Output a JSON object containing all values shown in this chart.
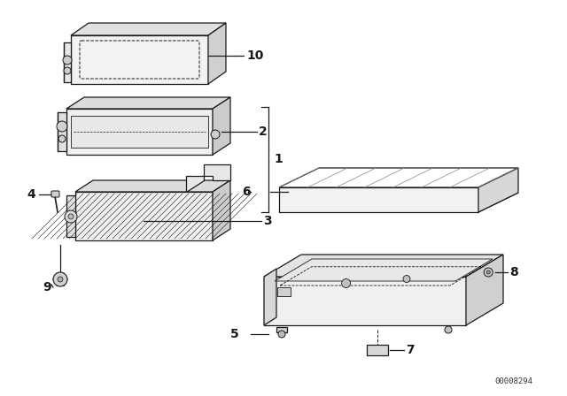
{
  "bg_color": "#ffffff",
  "line_color": "#1a1a1a",
  "part_number_text": "00008294",
  "fig_width": 6.4,
  "fig_height": 4.48,
  "dpi": 100
}
